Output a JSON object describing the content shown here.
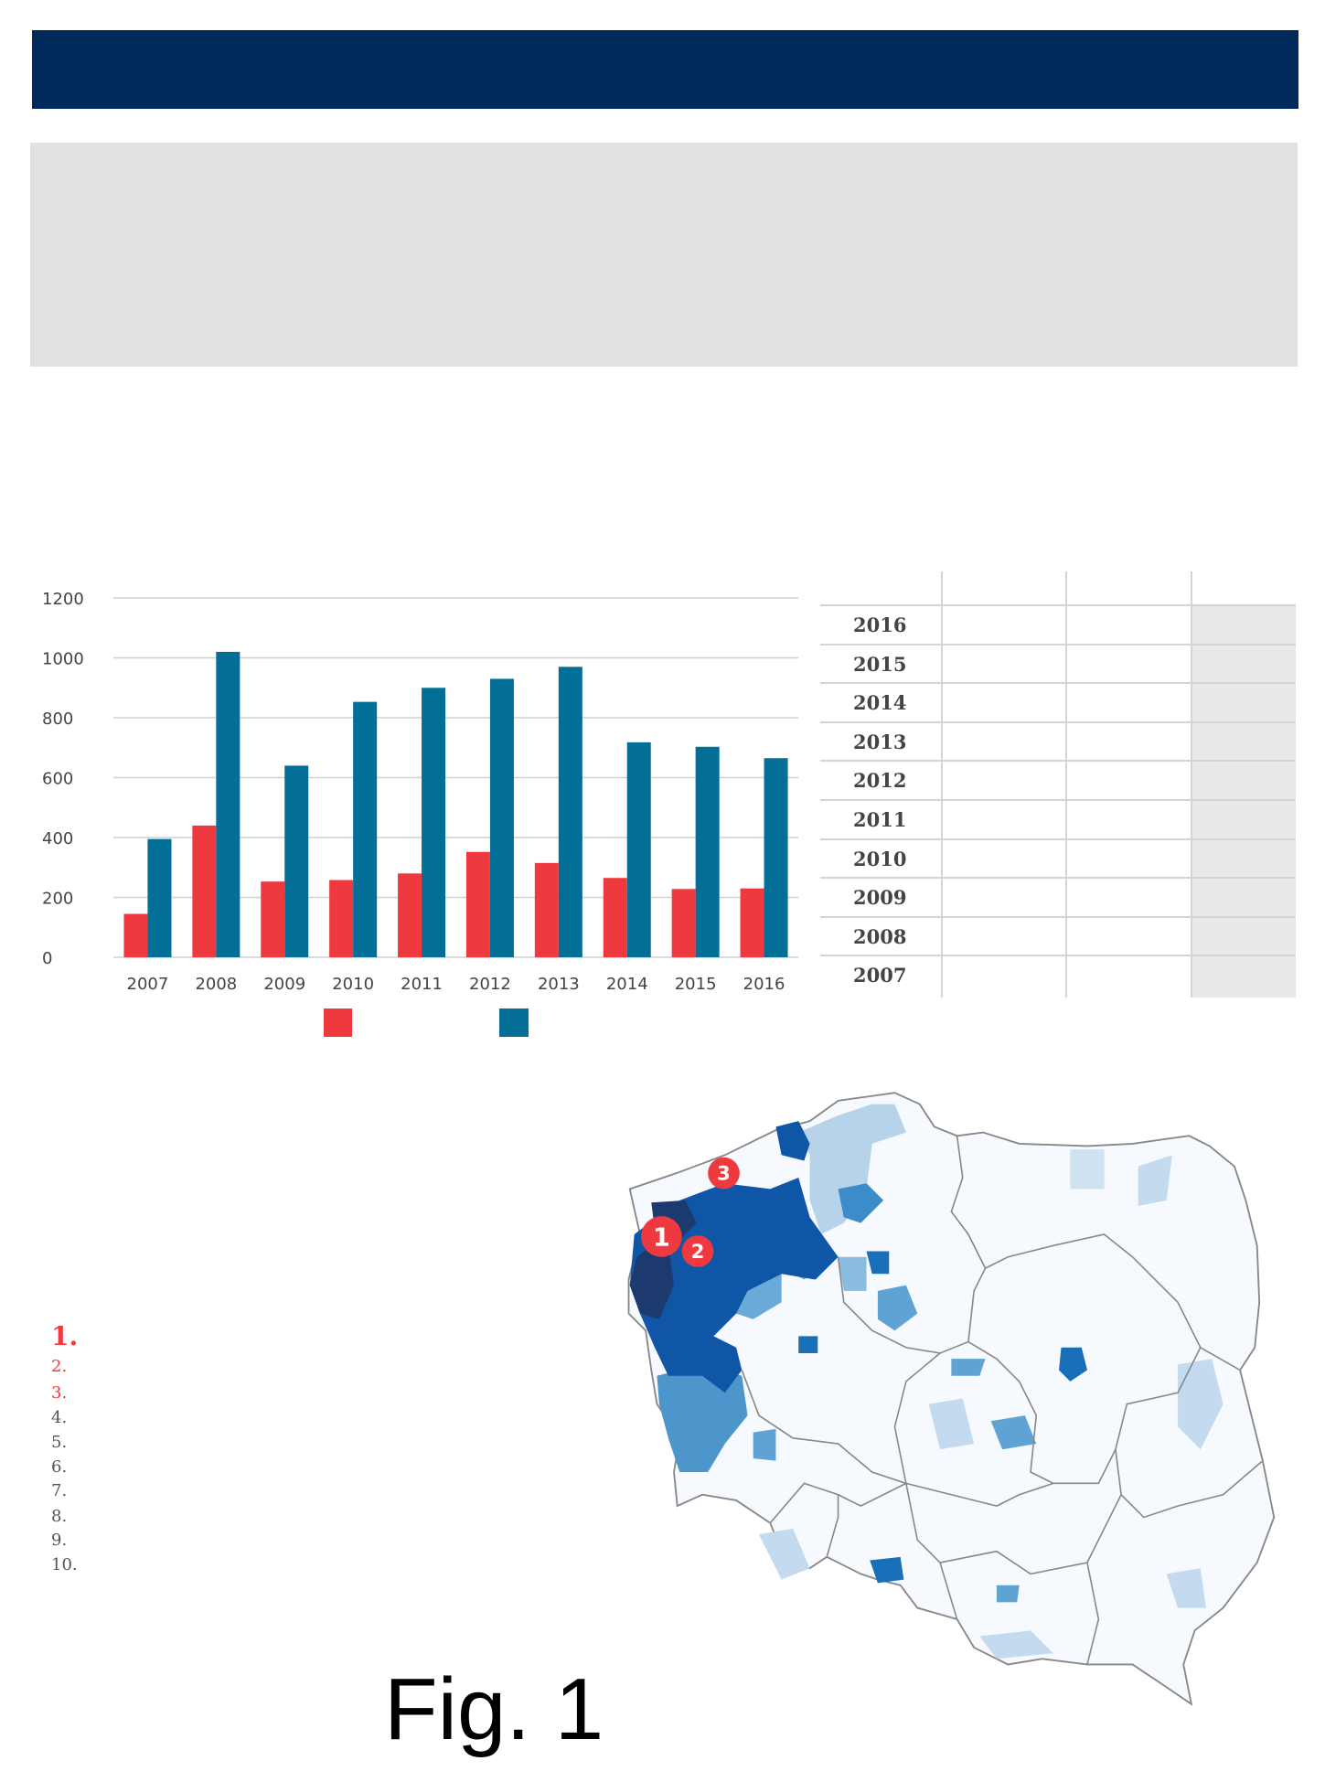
{
  "chart_data": {
    "type": "bar",
    "title": "",
    "xlabel": "",
    "ylabel": "",
    "categories": [
      "2007",
      "2008",
      "2009",
      "2010",
      "2011",
      "2012",
      "2013",
      "2014",
      "2015",
      "2016"
    ],
    "series": [
      {
        "name": "",
        "color": "#ee3a3f",
        "values": [
          145,
          440,
          253,
          258,
          280,
          352,
          315,
          265,
          228,
          230
        ]
      },
      {
        "name": "",
        "color": "#036e96",
        "values": [
          395,
          1020,
          640,
          853,
          900,
          930,
          970,
          718,
          703,
          665
        ]
      }
    ],
    "ylim": [
      0,
      1200
    ],
    "yticks": [
      "0",
      "200",
      "400",
      "600",
      "800",
      "1000",
      "1200"
    ],
    "grid": true,
    "legend": "bottom"
  },
  "table": {
    "rows": [
      "2016",
      "2015",
      "2014",
      "2013",
      "2012",
      "2011",
      "2010",
      "2009",
      "2008",
      "2007"
    ]
  },
  "ranking": {
    "items": [
      "1.",
      "2.",
      "3.",
      "4.",
      "5.",
      "6.",
      "7.",
      "8.",
      "9.",
      "10."
    ]
  },
  "map": {
    "markers": [
      "1",
      "2",
      "3"
    ],
    "colors": {
      "darkest": "#1c3a6e",
      "dark": "#0f57a6",
      "mid": "#3b8cc8",
      "light": "#a8cbe6",
      "pale": "#dbe9f5",
      "base": "#f6f9fd",
      "marker": "#ee3a3f"
    }
  },
  "caption": "Fig. 1"
}
